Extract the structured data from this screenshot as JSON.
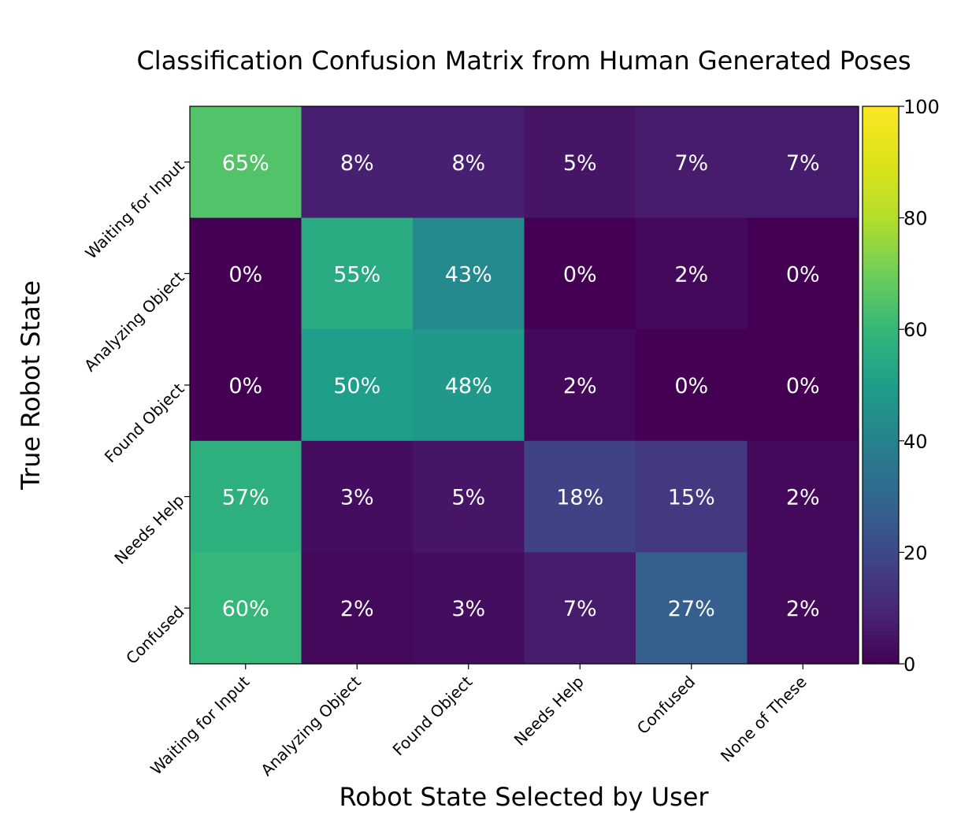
{
  "chart_data": {
    "type": "heatmap",
    "title": "Classification Confusion Matrix from Human Generated Poses",
    "xlabel": "Robot State Selected by User",
    "ylabel": "True Robot State",
    "x_categories": [
      "Waiting for Input",
      "Analyzing Object",
      "Found Object",
      "Needs Help",
      "Confused",
      "None of These"
    ],
    "y_categories": [
      "Waiting for Input",
      "Analyzing Object",
      "Found Object",
      "Needs Help",
      "Confused"
    ],
    "values": [
      [
        65,
        8,
        8,
        5,
        7,
        7
      ],
      [
        0,
        55,
        43,
        0,
        2,
        0
      ],
      [
        0,
        50,
        48,
        2,
        0,
        0
      ],
      [
        57,
        3,
        5,
        18,
        15,
        2
      ],
      [
        60,
        2,
        3,
        7,
        27,
        2
      ]
    ],
    "cell_labels": [
      [
        "65%",
        "8%",
        "8%",
        "5%",
        "7%",
        "7%"
      ],
      [
        "0%",
        "55%",
        "43%",
        "0%",
        "2%",
        "0%"
      ],
      [
        "0%",
        "50%",
        "48%",
        "2%",
        "0%",
        "0%"
      ],
      [
        "57%",
        "3%",
        "5%",
        "18%",
        "15%",
        "2%"
      ],
      [
        "60%",
        "2%",
        "3%",
        "7%",
        "27%",
        "2%"
      ]
    ],
    "colorbar": {
      "colormap": "viridis",
      "range": [
        0,
        100
      ],
      "ticks": [
        "0",
        "20",
        "40",
        "60",
        "80",
        "100"
      ]
    }
  }
}
